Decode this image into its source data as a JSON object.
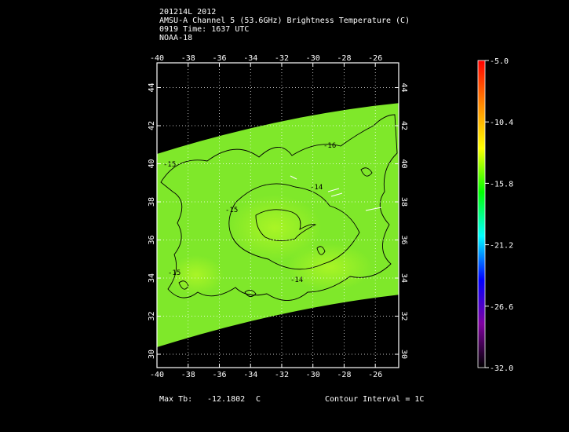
{
  "header": {
    "line1": "201214L 2012",
    "line2": "AMSU-A Channel 5 (53.6GHz) Brightness Temperature (C)",
    "line3": "0919 Time: 1637 UTC",
    "line4": "NOAA-18"
  },
  "map": {
    "lon_ticks": [
      "-40",
      "-38",
      "-36",
      "-34",
      "-32",
      "-30",
      "-28",
      "-26"
    ],
    "lat_ticks": [
      "30",
      "32",
      "34",
      "36",
      "38",
      "40",
      "42",
      "44"
    ],
    "lon_range": [
      -40,
      -24.5
    ],
    "lat_range": [
      29.3,
      45.3
    ],
    "contour_labels": [
      "-16",
      "-15",
      "-15",
      "-15",
      "-14",
      "-14"
    ],
    "swath_color": "#7fe82a",
    "grid": "dotted"
  },
  "colorbar": {
    "labels": [
      "-5.0",
      "-10.4",
      "-15.8",
      "-21.2",
      "-26.6",
      "-32.0"
    ],
    "stops": [
      "#ff0000",
      "#ff8800",
      "#ffff00",
      "#00ff00",
      "#00ffff",
      "#0000ff",
      "#8000a0",
      "#000000"
    ]
  },
  "footer": {
    "max_label": "Max Tb:",
    "max_value": "-12.1802",
    "max_unit": "C",
    "contour_interval": "Contour Interval = 1C"
  }
}
